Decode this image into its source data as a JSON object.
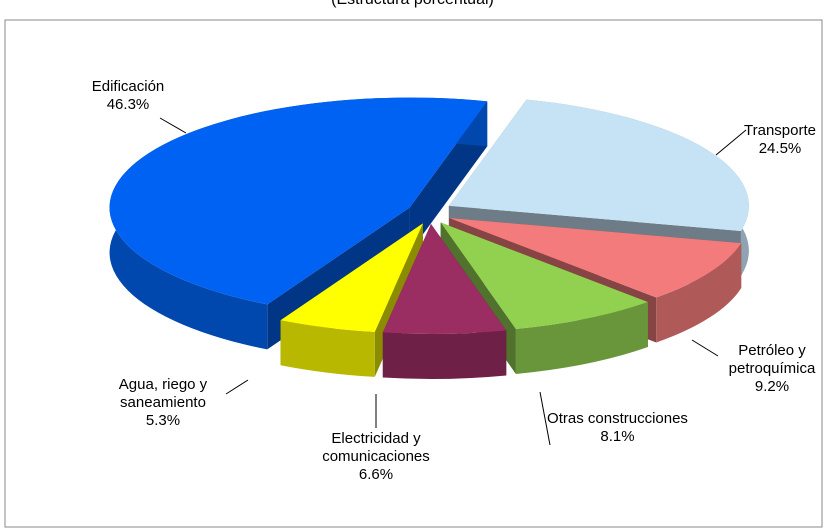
{
  "chart_data": {
    "type": "pie3d",
    "subtitle": "(Estructura porcentual)",
    "categories": [
      "Edificación",
      "Transporte",
      "Petróleo y petroquímica",
      "Otras construcciones",
      "Electricidad y comunicaciones",
      "Agua, riego y saneamiento"
    ],
    "values": [
      46.3,
      24.5,
      9.2,
      8.1,
      6.6,
      5.3
    ],
    "value_labels": [
      "46.3%",
      "24.5%",
      "9.2%",
      "8.1%",
      "6.6%",
      "5.3%"
    ],
    "colors": [
      "#0062f2",
      "#c6e2f5",
      "#f47b7b",
      "#92d050",
      "#9a2d62",
      "#ffff00"
    ]
  }
}
